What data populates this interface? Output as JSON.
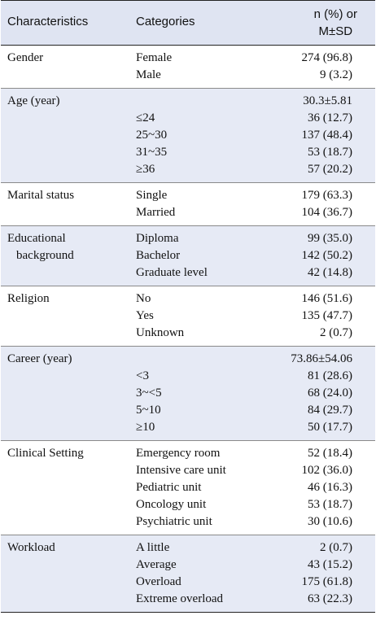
{
  "header": {
    "col1": "Characteristics",
    "col2": "Categories",
    "col3_line1": "n (%) or",
    "col3_line2": "M±SD"
  },
  "groups": [
    {
      "name": "Gender",
      "name2": "",
      "rows": [
        {
          "cat": "Female",
          "val": "274 (96.8)"
        },
        {
          "cat": "Male",
          "val": "9 (3.2)"
        }
      ]
    },
    {
      "name": "Age  (year)",
      "name2": "",
      "rows": [
        {
          "cat": "",
          "val": "30.3±5.81"
        },
        {
          "cat": "≤24",
          "val": "36 (12.7)"
        },
        {
          "cat": "25~30",
          "val": "137 (48.4)"
        },
        {
          "cat": "31~35",
          "val": "53 (18.7)"
        },
        {
          "cat": "≥36",
          "val": "57 (20.2)"
        }
      ]
    },
    {
      "name": "Marital status",
      "name2": "",
      "rows": [
        {
          "cat": "Single",
          "val": "179 (63.3)"
        },
        {
          "cat": "Married",
          "val": "104 (36.7)"
        }
      ]
    },
    {
      "name": "Educational",
      "name2": "background",
      "rows": [
        {
          "cat": "Diploma",
          "val": "99 (35.0)"
        },
        {
          "cat": "Bachelor",
          "val": "142 (50.2)"
        },
        {
          "cat": "Graduate level",
          "val": "42 (14.8)"
        }
      ]
    },
    {
      "name": "Religion",
      "name2": "",
      "rows": [
        {
          "cat": "No",
          "val": "146 (51.6)"
        },
        {
          "cat": "Yes",
          "val": "135 (47.7)"
        },
        {
          "cat": "Unknown",
          "val": "2 (0.7)"
        }
      ]
    },
    {
      "name": "Career (year)",
      "name2": "",
      "rows": [
        {
          "cat": "",
          "val": "73.86±54.06"
        },
        {
          "cat": "<3",
          "val": "81 (28.6)"
        },
        {
          "cat": "3~<5",
          "val": "68 (24.0)"
        },
        {
          "cat": "5~10",
          "val": "84 (29.7)"
        },
        {
          "cat": "≥10",
          "val": "50 (17.7)"
        }
      ]
    },
    {
      "name": "Clinical Setting",
      "name2": "",
      "rows": [
        {
          "cat": "Emergency room",
          "val": "52 (18.4)"
        },
        {
          "cat": "Intensive care unit",
          "val": "102 (36.0)"
        },
        {
          "cat": "Pediatric unit",
          "val": "46 (16.3)"
        },
        {
          "cat": "Oncology unit",
          "val": "53 (18.7)"
        },
        {
          "cat": "Psychiatric unit",
          "val": "30 (10.6)"
        }
      ]
    },
    {
      "name": "Workload",
      "name2": "",
      "rows": [
        {
          "cat": "A little",
          "val": "2 (0.7)"
        },
        {
          "cat": "Average",
          "val": "43 (15.2)"
        },
        {
          "cat": "Overload",
          "val": "175 (61.8)"
        },
        {
          "cat": "Extreme overload",
          "val": "63 (22.3)"
        }
      ]
    }
  ]
}
